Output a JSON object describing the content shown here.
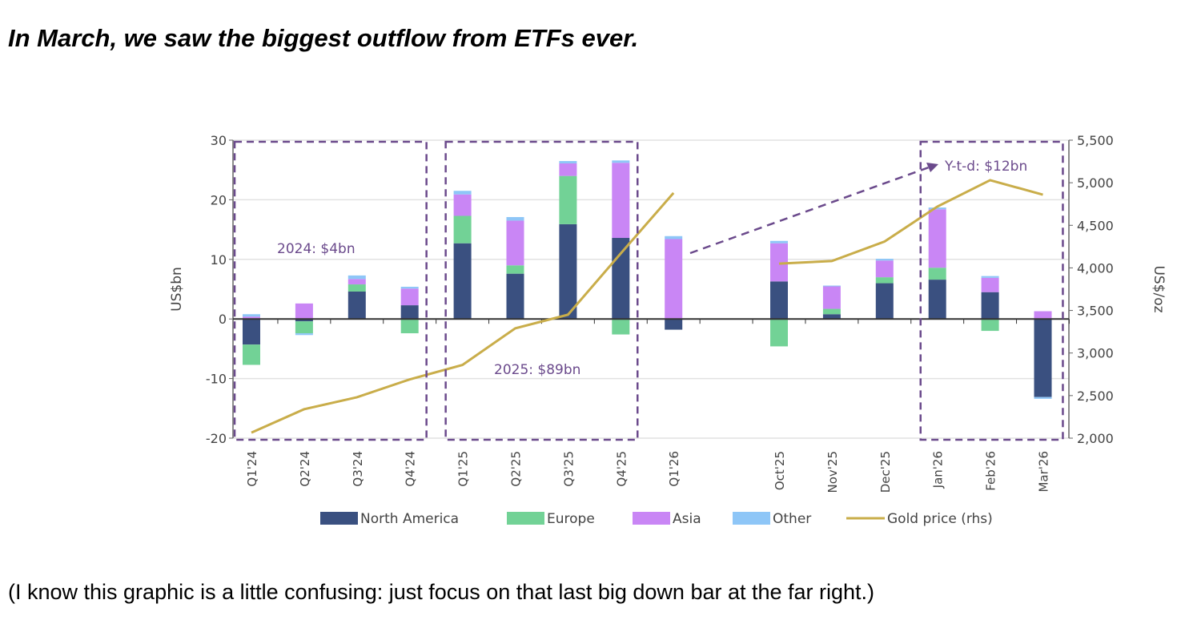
{
  "title": "In March, we saw the biggest outflow from ETFs ever.",
  "caption": "(I know this graphic is a little confusing: just focus on that last big down bar at the far right.)",
  "chart_data": {
    "type": "bar",
    "stacked": true,
    "categories": [
      "Q1'24",
      "Q2'24",
      "Q3'24",
      "Q4'24",
      "Q1'25",
      "Q2'25",
      "Q3'25",
      "Q4'25",
      "Q1'26",
      "",
      "Oct'25",
      "Nov'25",
      "Dec'25",
      "Jan'26",
      "Feb'26",
      "Mar'26"
    ],
    "ylabel": "US$bn",
    "ylabel_right": "US$/oz",
    "ylim": [
      -20,
      30
    ],
    "ylim_right": [
      2000,
      5500
    ],
    "yticks": [
      "30",
      "20",
      "10",
      "0",
      "-10",
      "-20"
    ],
    "yticks_right": [
      "5,500",
      "5,000",
      "4,500",
      "4,000",
      "3,500",
      "3,000",
      "2,500",
      "2,000"
    ],
    "grid": true,
    "legend_position": "bottom",
    "series": [
      {
        "name": "North America",
        "color": "#3a5080",
        "values": [
          -4.3,
          -0.4,
          4.6,
          2.3,
          12.7,
          7.6,
          15.9,
          13.6,
          -1.8,
          null,
          6.3,
          0.8,
          6.0,
          6.6,
          4.5,
          -13.1
        ]
      },
      {
        "name": "Europe",
        "color": "#72d296",
        "values": [
          -3.4,
          -2.0,
          1.2,
          -2.4,
          4.6,
          1.4,
          8.1,
          -2.6,
          0,
          null,
          -4.6,
          0.9,
          1.0,
          2.0,
          -2.0,
          0
        ]
      },
      {
        "name": "Asia",
        "color": "#c986f5",
        "values": [
          0.4,
          2.6,
          0.9,
          2.8,
          3.6,
          7.5,
          2.1,
          12.6,
          13.4,
          null,
          6.4,
          3.8,
          2.8,
          9.8,
          2.4,
          1.3
        ]
      },
      {
        "name": "Other",
        "color": "#8ec6f7",
        "values": [
          0.4,
          -0.3,
          0.6,
          0.3,
          0.6,
          0.6,
          0.4,
          0.4,
          0.5,
          null,
          0.4,
          0.1,
          0.3,
          0.3,
          0.3,
          -0.3
        ]
      }
    ],
    "line_series": {
      "name": "Gold price (rhs)",
      "color": "#c9ad4a",
      "axis": "right",
      "segments": [
        {
          "indices": [
            0,
            1,
            2,
            3,
            4,
            5,
            6,
            7,
            8
          ],
          "values": [
            2065,
            2340,
            2480,
            2690,
            2860,
            3290,
            3450,
            4170,
            4880
          ]
        },
        {
          "indices": [
            10,
            11,
            12,
            13,
            14,
            15
          ],
          "values": [
            4050,
            4080,
            4310,
            4720,
            5030,
            4860
          ]
        }
      ]
    },
    "annotations": [
      {
        "text": "2024: $4bn",
        "group": [
          0,
          3
        ]
      },
      {
        "text": "2025: $89bn",
        "group": [
          4,
          7
        ]
      },
      {
        "text": "Y-t-d: $12bn",
        "group": [
          13,
          15
        ]
      }
    ],
    "annotation_color": "#6b4a8c"
  }
}
